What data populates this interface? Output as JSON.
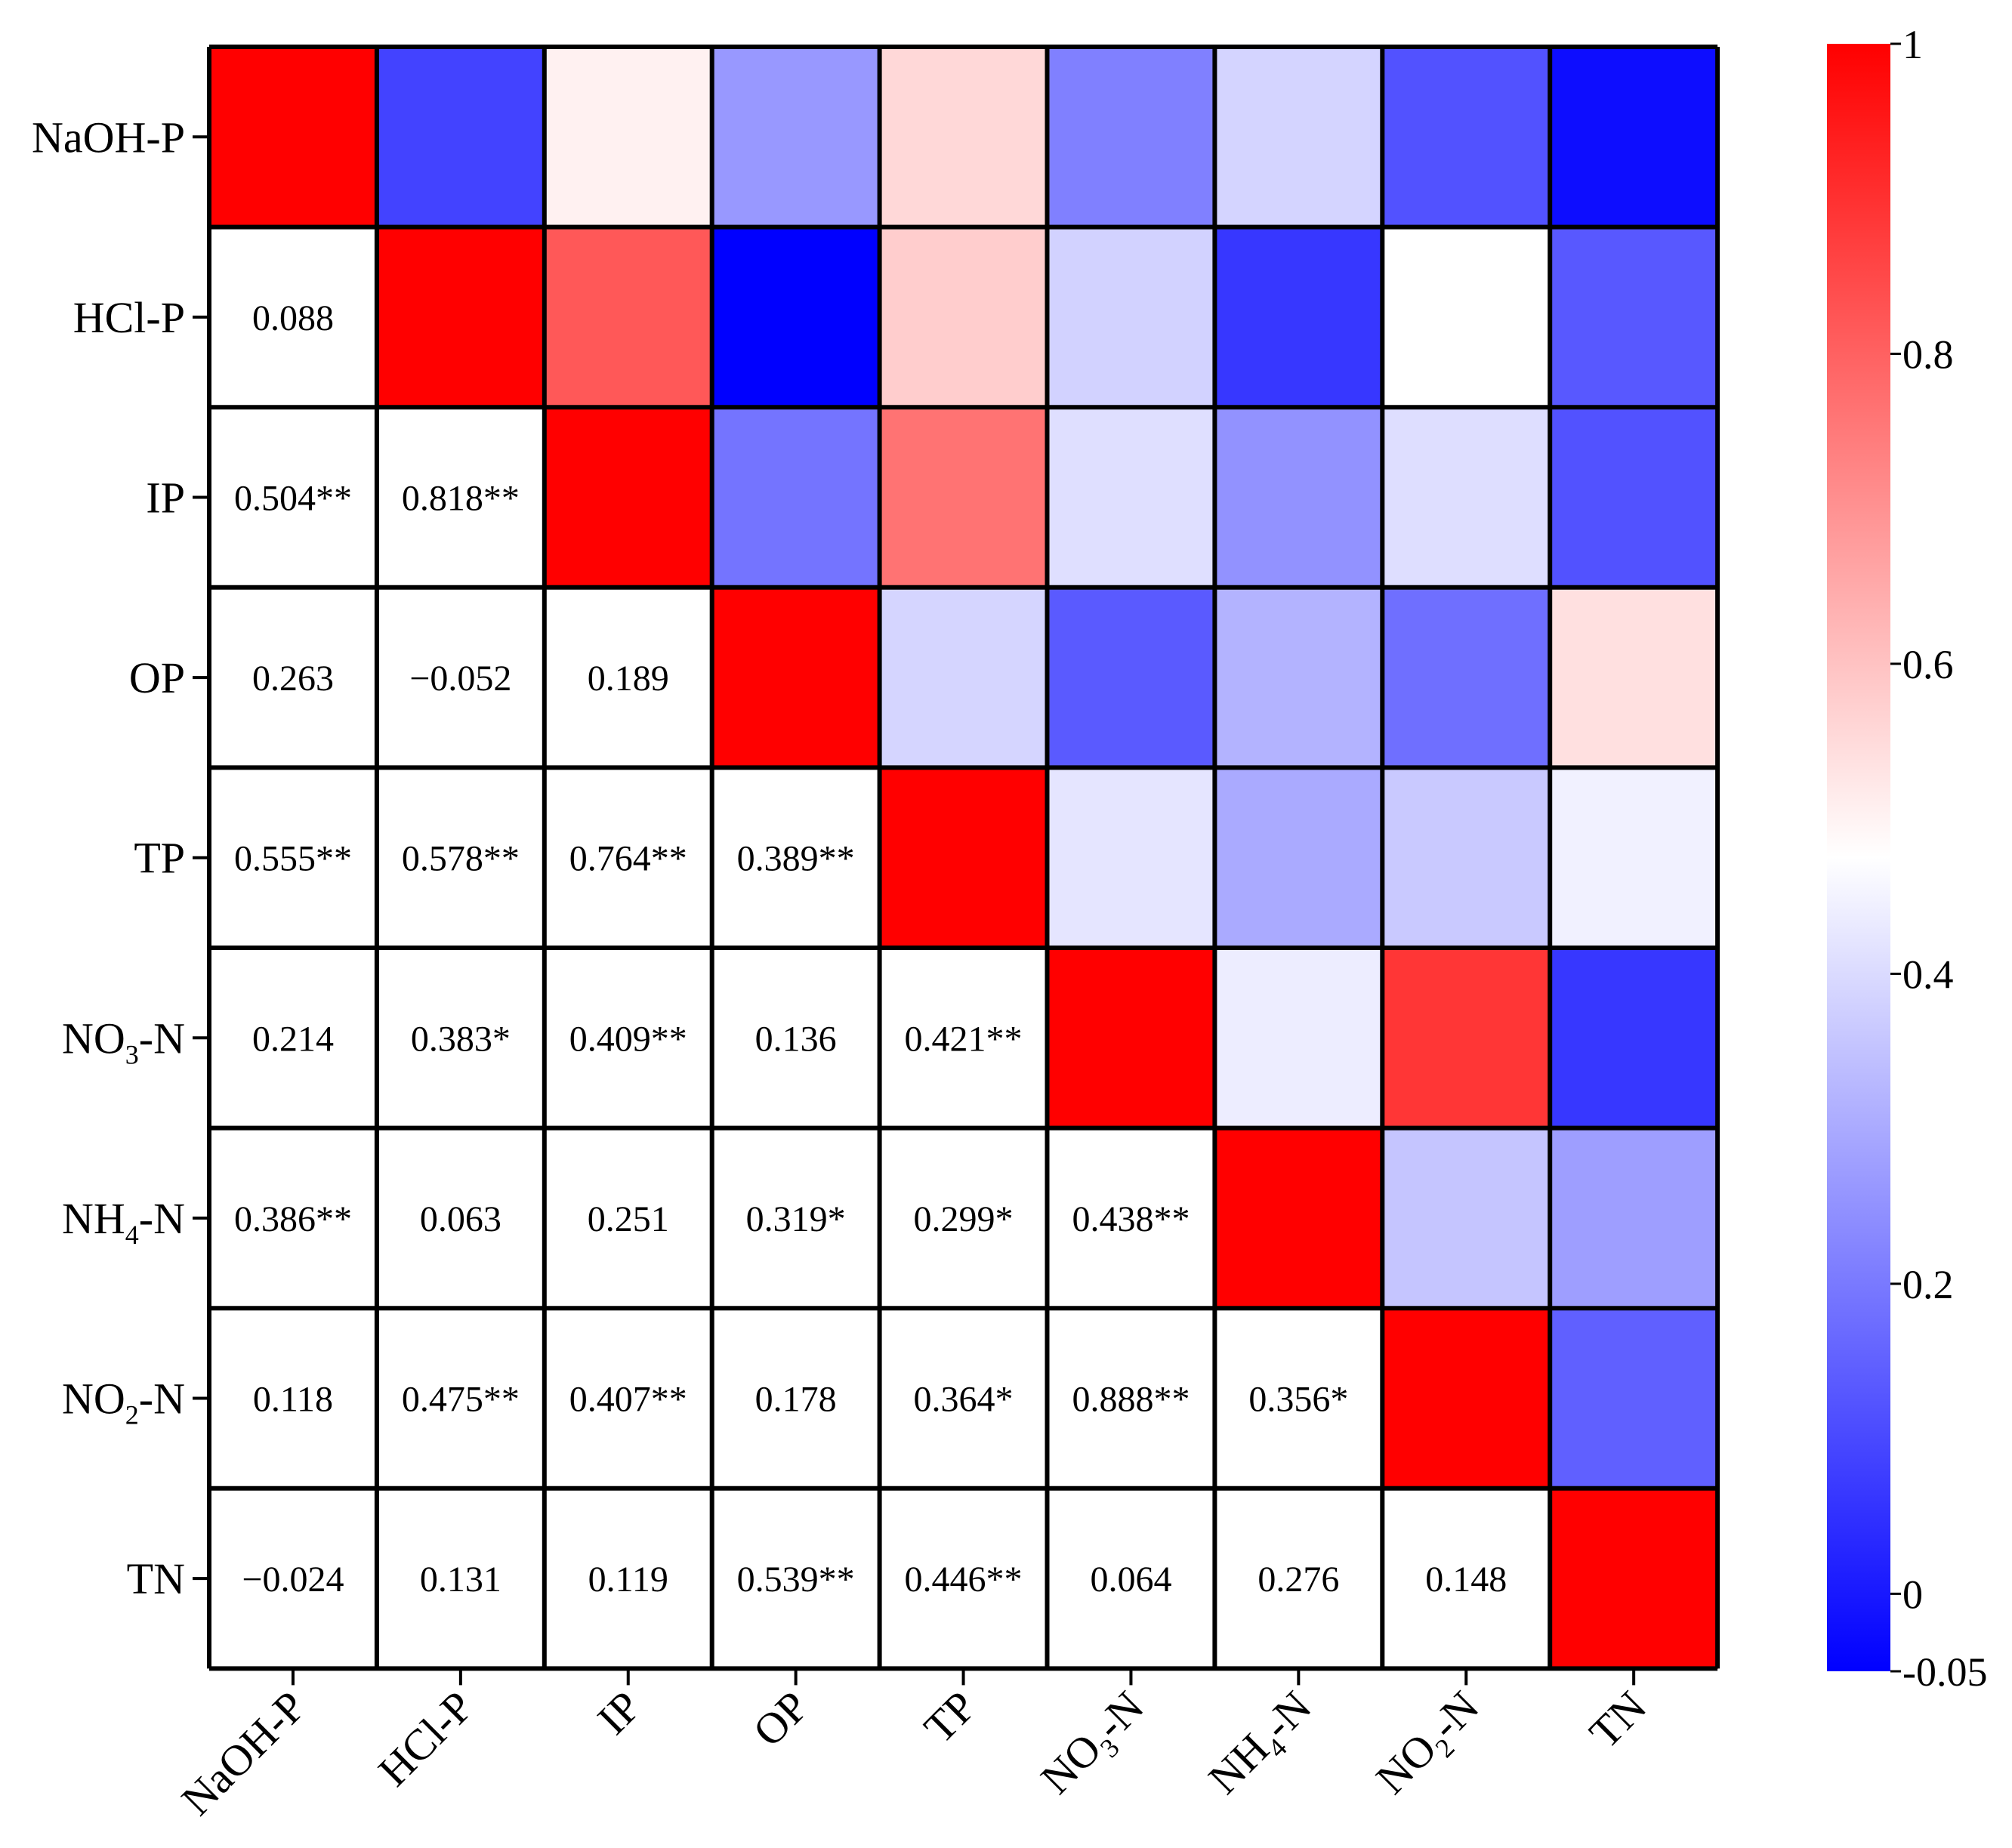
{
  "chart_data": {
    "type": "heatmap",
    "title": "",
    "variables": [
      "NaOH-P",
      "HCl-P",
      "IP",
      "OP",
      "TP",
      "NO3-N",
      "NH4-N",
      "NO2-N",
      "TN"
    ],
    "row_labels": [
      {
        "main": "NaOH-P",
        "sub": "",
        "suffix": ""
      },
      {
        "main": "HCl-P",
        "sub": "",
        "suffix": ""
      },
      {
        "main": "IP",
        "sub": "",
        "suffix": ""
      },
      {
        "main": "OP",
        "sub": "",
        "suffix": ""
      },
      {
        "main": "TP",
        "sub": "",
        "suffix": ""
      },
      {
        "main": "NO",
        "sub": "3",
        "suffix": "-N"
      },
      {
        "main": "NH",
        "sub": "4",
        "suffix": "-N"
      },
      {
        "main": "NO",
        "sub": "2",
        "suffix": "-N"
      },
      {
        "main": "TN",
        "sub": "",
        "suffix": ""
      }
    ],
    "lower_triangle_labels": [
      [
        "",
        "",
        "",
        "",
        "",
        "",
        "",
        "",
        ""
      ],
      [
        "0.088",
        "",
        "",
        "",
        "",
        "",
        "",
        "",
        ""
      ],
      [
        "0.504**",
        "0.818**",
        "",
        "",
        "",
        "",
        "",
        "",
        ""
      ],
      [
        "0.263",
        "−0.052",
        "0.189",
        "",
        "",
        "",
        "",
        "",
        ""
      ],
      [
        "0.555**",
        "0.578**",
        "0.764**",
        "0.389**",
        "",
        "",
        "",
        "",
        ""
      ],
      [
        "0.214",
        "0.383*",
        "0.409**",
        "0.136",
        "0.421**",
        "",
        "",
        "",
        ""
      ],
      [
        "0.386**",
        "0.063",
        "0.251",
        "0.319*",
        "0.299*",
        "0.438**",
        "",
        "",
        ""
      ],
      [
        "0.118",
        "0.475**",
        "0.407**",
        "0.178",
        "0.364*",
        "0.888**",
        "0.356*",
        "",
        ""
      ],
      [
        "−0.024",
        "0.131",
        "0.119",
        "0.539**",
        "0.446**",
        "0.064",
        "0.276",
        "0.148",
        ""
      ]
    ],
    "matrix": [
      [
        1,
        0.088,
        0.504,
        0.263,
        0.555,
        0.214,
        0.386,
        0.118,
        -0.024
      ],
      [
        0.088,
        1,
        0.818,
        -0.052,
        0.578,
        0.383,
        0.063,
        0.475,
        0.131
      ],
      [
        0.504,
        0.818,
        1,
        0.189,
        0.764,
        0.409,
        0.251,
        0.407,
        0.119
      ],
      [
        0.263,
        -0.052,
        0.189,
        1,
        0.389,
        0.136,
        0.319,
        0.178,
        0.539
      ],
      [
        0.555,
        0.578,
        0.764,
        0.389,
        1,
        0.421,
        0.299,
        0.364,
        0.446
      ],
      [
        0.214,
        0.383,
        0.409,
        0.136,
        0.421,
        1,
        0.438,
        0.888,
        0.064
      ],
      [
        0.386,
        0.063,
        0.251,
        0.319,
        0.299,
        0.438,
        1,
        0.356,
        0.276
      ],
      [
        0.118,
        0.475,
        0.407,
        0.178,
        0.364,
        0.888,
        0.356,
        1,
        0.148
      ],
      [
        -0.024,
        0.131,
        0.119,
        0.539,
        0.446,
        0.064,
        0.276,
        0.148,
        1
      ]
    ],
    "colorbar": {
      "min": -0.05,
      "max": 1,
      "center": 0.475,
      "ticks": [
        -0.05,
        0,
        0.2,
        0.4,
        0.6,
        0.8,
        1
      ],
      "tick_labels": [
        "-0.05",
        "0",
        "0.2",
        "0.4",
        "0.6",
        "0.8",
        "1"
      ],
      "low_color": "#0000ff",
      "mid_color": "#ffffff",
      "high_color": "#ff0000"
    },
    "grid_color": "#000000",
    "lower_cell_color": "#ffffff"
  }
}
